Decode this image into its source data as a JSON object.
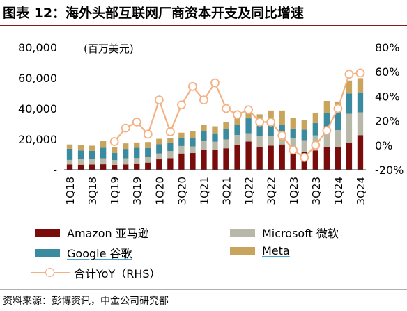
{
  "figure": {
    "title": "图表 12：海外头部互联网厂商资本开支及同比增速",
    "source": "资料来源：彭博资讯，中金公司研究部"
  },
  "colors": {
    "amazon": "#7b0c0c",
    "microsoft": "#b8b8a8",
    "google": "#3a8ba0",
    "meta": "#c8a45c",
    "yoy": "#f4b183",
    "title_rule": "#8c1a1a"
  },
  "chart_data": {
    "type": "bar",
    "stacked": true,
    "unit_label": "(百万美元)",
    "categories": [
      "1Q18",
      "2Q18",
      "3Q18",
      "4Q18",
      "1Q19",
      "2Q19",
      "3Q19",
      "4Q19",
      "1Q20",
      "2Q20",
      "3Q20",
      "4Q20",
      "1Q21",
      "2Q21",
      "3Q21",
      "4Q21",
      "1Q22",
      "2Q22",
      "3Q22",
      "4Q22",
      "1Q23",
      "2Q23",
      "3Q23",
      "4Q23",
      "1Q24",
      "2Q24",
      "3Q24"
    ],
    "x_tick_labels": [
      "1Q18",
      "3Q18",
      "1Q19",
      "3Q19",
      "1Q20",
      "3Q20",
      "1Q21",
      "3Q21",
      "1Q22",
      "3Q22",
      "1Q23",
      "3Q23",
      "1Q24",
      "3Q24"
    ],
    "series": [
      {
        "name": "Amazon 亚马逊",
        "axis": "left",
        "color": "#7b0c0c",
        "values": [
          3500,
          3300,
          3400,
          3600,
          3200,
          3500,
          4200,
          4700,
          6800,
          7500,
          10600,
          10900,
          13000,
          13000,
          14000,
          16100,
          18400,
          15000,
          15700,
          16500,
          14000,
          11500,
          12500,
          14600,
          14900,
          17600,
          22600
        ]
      },
      {
        "name": "Microsoft 微软",
        "axis": "left",
        "color": "#b8b8a8",
        "values": [
          2900,
          3800,
          3600,
          3900,
          3100,
          4000,
          3400,
          3500,
          3800,
          4700,
          4900,
          4300,
          6000,
          5300,
          5800,
          6600,
          5400,
          6900,
          6300,
          6700,
          6600,
          7800,
          9900,
          11500,
          11000,
          19000,
          14900
        ]
      },
      {
        "name": "Google 谷歌",
        "axis": "left",
        "color": "#3a8ba0",
        "values": [
          7300,
          5500,
          5300,
          6800,
          4600,
          6100,
          6700,
          6000,
          6000,
          5400,
          5400,
          5500,
          6000,
          5500,
          6800,
          6400,
          9800,
          6800,
          7300,
          6300,
          6300,
          6900,
          8100,
          11000,
          12000,
          13200,
          13100
        ]
      },
      {
        "name": "Meta",
        "axis": "left",
        "color": "#c8a45c",
        "values": [
          2800,
          3500,
          3400,
          4400,
          3800,
          3600,
          3500,
          3900,
          3600,
          3300,
          3300,
          4600,
          4300,
          4600,
          4300,
          5500,
          5600,
          7500,
          9400,
          9200,
          6800,
          6400,
          6800,
          7900,
          6700,
          8500,
          9200
        ]
      },
      {
        "name": "合计YoY（RHS）",
        "axis": "right",
        "type": "line",
        "color": "#f4b183",
        "values": [
          null,
          null,
          null,
          null,
          0.03,
          0.14,
          0.19,
          0.09,
          0.37,
          0.11,
          0.33,
          0.48,
          0.37,
          0.51,
          0.3,
          0.25,
          0.29,
          0.19,
          0.19,
          0.08,
          -0.04,
          -0.1,
          0.0,
          0.12,
          0.3,
          0.58,
          0.59
        ]
      }
    ],
    "y_left": {
      "ylim": [
        0,
        80000
      ],
      "ticks": [
        0,
        20000,
        40000,
        60000,
        80000
      ],
      "tick_labels": [
        "-",
        "20,000",
        "40,000",
        "60,000",
        "80,000"
      ]
    },
    "y_right": {
      "ylim": [
        -0.2,
        0.8
      ],
      "ticks": [
        -0.2,
        0,
        0.2,
        0.4,
        0.6,
        0.8
      ],
      "tick_labels": [
        "-20%",
        "0%",
        "20%",
        "40%",
        "60%",
        "80%"
      ]
    },
    "grid": false,
    "legend_placement": "bottom"
  }
}
